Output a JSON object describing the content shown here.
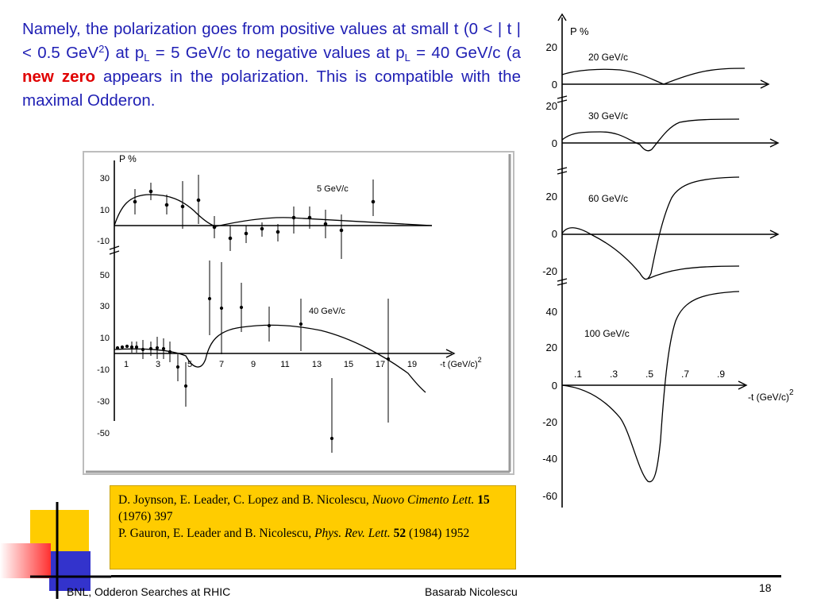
{
  "slide": {
    "text": {
      "p1": "Namely, the polarization goes from positive values at small t (0 < | t | < 0.5 GeV",
      "p1_sup": "2",
      "p2": ") at p",
      "p2_sub": "L",
      "p3": " = 5 GeV/c to negative values at p",
      "p3_sub": "L",
      "p4": " = 40 GeV/c (a ",
      "highlight": "new zero",
      "p5": " appears in the polarization. This is compatible with the maximal Odderon."
    },
    "reference": {
      "r1_authors": "D. Joynson, E. Leader, C. Lopez and B. Nicolescu, ",
      "r1_journal": "Nuovo Cimento Lett.",
      "r1_volume": "15",
      "r1_rest": " (1976) 397",
      "r2_authors": "P. Gauron, E. Leader and B. Nicolescu, ",
      "r2_journal": "Phys. Rev. Lett.",
      "r2_volume": "52",
      "r2_rest": " (1984) 1952"
    },
    "footer": {
      "left": "BNL, Odderon Searches at RHIC",
      "center": "Basarab Nicolescu",
      "page": "18"
    },
    "decoration": {
      "yellow": "#ffcc00",
      "blue": "#3333cc",
      "red": "#ff3030"
    }
  },
  "figures": {
    "left": {
      "y_label": "P %",
      "x_label": "-t (GeV/c)",
      "x_label_exp": "2",
      "panel_top": {
        "label": "5 GeV/c",
        "y_ticks": [
          "30",
          "10",
          "-10"
        ]
      },
      "panel_bottom": {
        "label": "40 GeV/c",
        "y_ticks": [
          "50",
          "30",
          "10",
          "-10",
          "-30",
          "-50"
        ],
        "x_ticks": [
          "1",
          "3",
          "5",
          "7",
          "9",
          "11",
          "13",
          "15",
          "17",
          "19"
        ]
      }
    },
    "right": {
      "y_label": "P %",
      "x_label": "-t (GeV/c)",
      "x_label_exp": "2",
      "panels": [
        {
          "label": "20 GeV/c",
          "y_ticks": [
            "20",
            "0"
          ]
        },
        {
          "label": "30 GeV/c",
          "y_ticks": [
            "20",
            "0"
          ]
        },
        {
          "label": "60 GeV/c",
          "y_ticks": [
            "20",
            "0",
            "-20"
          ]
        },
        {
          "label": "100 GeV/c",
          "y_ticks": [
            "40",
            "20",
            "0",
            "-20",
            "-40",
            "-60"
          ],
          "x_ticks": [
            ".1",
            ".3",
            ".5",
            ".7",
            ".9"
          ]
        }
      ]
    }
  }
}
